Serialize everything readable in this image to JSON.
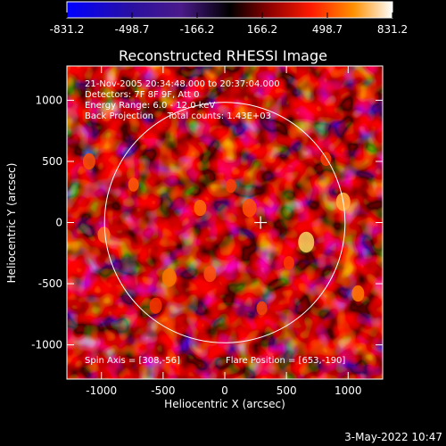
{
  "colorbar": {
    "tick_labels": [
      "-831.2",
      "-498.7",
      "-166.2",
      "166.2",
      "498.7",
      "831.2"
    ],
    "range": [
      -831.2,
      831.2
    ],
    "colormap_stops": [
      "#0000ff",
      "#30106e",
      "#4a1a8a",
      "#000000",
      "#8b0000",
      "#ff2000",
      "#ff8000",
      "#ffffff"
    ]
  },
  "image": {
    "title": "Reconstructed RHESSI Image",
    "xlabel": "Heliocentric X (arcsec)",
    "ylabel": "Heliocentric Y (arcsec)",
    "x_range": [
      -1280,
      1280
    ],
    "y_range": [
      -1280,
      1280
    ],
    "x_tick_values": [
      -1000,
      -500,
      0,
      500,
      1000
    ],
    "x_tick_labels": [
      "-1000",
      "-500",
      "0",
      "500",
      "1000"
    ],
    "y_tick_values": [
      1000,
      500,
      0,
      -500,
      -1000
    ],
    "y_tick_labels": [
      "1000",
      "500",
      "0",
      "-500",
      "-1000"
    ],
    "limb_radius_arcsec": 975,
    "flare_marker": [
      290,
      0
    ],
    "info_lines": [
      "21-Nov-2005 20:34:48.000 to 20:37:04.000",
      "Detectors: 7F 8F 9F, Att 0",
      "Energy Range: 6.0 - 12.0 keV",
      "Back Projection     Total counts: 1.43E+03"
    ],
    "spin_axis": "Spin Axis = [308,-56]",
    "flare_position": "Flare Position = [653,-190]"
  },
  "footer": {
    "timestamp": "3-May-2022 10:47"
  }
}
